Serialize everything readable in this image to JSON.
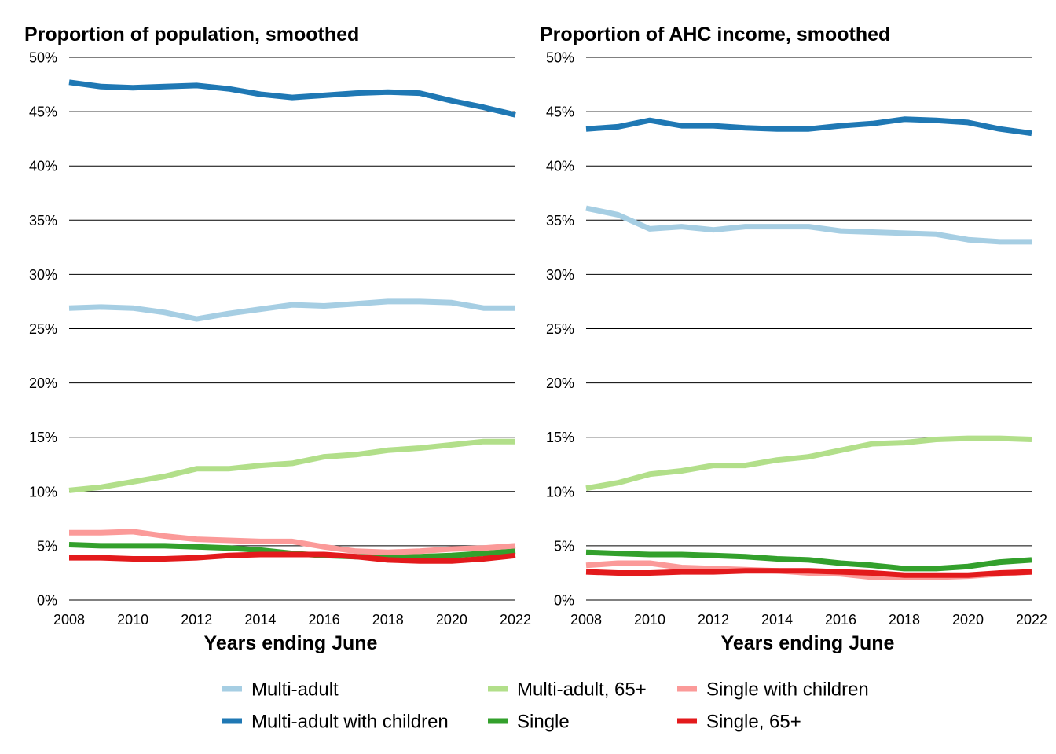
{
  "chart_data": [
    {
      "type": "line",
      "title": "Proportion of population, smoothed",
      "xlabel": "Years ending June",
      "ylabel": "",
      "ylim": [
        0,
        50
      ],
      "yticks": [
        0,
        5,
        10,
        15,
        20,
        25,
        30,
        35,
        40,
        45,
        50
      ],
      "ytick_labels": [
        "0%",
        "5%",
        "10%",
        "15%",
        "20%",
        "25%",
        "30%",
        "35%",
        "40%",
        "45%",
        "50%"
      ],
      "xlim": [
        2008,
        2022
      ],
      "xticks": [
        2008,
        2010,
        2012,
        2014,
        2016,
        2018,
        2020,
        2022
      ],
      "xtick_labels": [
        "2008",
        "2010",
        "2012",
        "2014",
        "2016",
        "2018",
        "2020",
        "2022"
      ],
      "grid": "horizontal",
      "x": [
        2008,
        2009,
        2010,
        2011,
        2012,
        2013,
        2014,
        2015,
        2016,
        2017,
        2018,
        2019,
        2020,
        2021,
        2022
      ],
      "series": [
        {
          "name": "Multi-adult",
          "color": "#a6cee3",
          "values": [
            26.9,
            27.0,
            26.9,
            26.5,
            25.9,
            26.4,
            26.8,
            27.2,
            27.1,
            27.3,
            27.5,
            27.5,
            27.4,
            26.9,
            26.9
          ]
        },
        {
          "name": "Multi-adult with children",
          "color": "#1f78b4",
          "values": [
            47.7,
            47.3,
            47.2,
            47.3,
            47.4,
            47.1,
            46.6,
            46.3,
            46.5,
            46.7,
            46.8,
            46.7,
            46.0,
            45.4,
            44.7
          ]
        },
        {
          "name": "Multi-adult, 65+",
          "color": "#b2df8a",
          "values": [
            10.1,
            10.4,
            10.9,
            11.4,
            12.1,
            12.1,
            12.4,
            12.6,
            13.2,
            13.4,
            13.8,
            14.0,
            14.3,
            14.6,
            14.6
          ]
        },
        {
          "name": "Single",
          "color": "#33a02c",
          "values": [
            5.1,
            5.0,
            5.0,
            5.0,
            4.9,
            4.8,
            4.6,
            4.3,
            4.1,
            4.0,
            4.0,
            4.0,
            4.1,
            4.3,
            4.5
          ]
        },
        {
          "name": "Single with children",
          "color": "#fb9a99",
          "values": [
            6.2,
            6.2,
            6.3,
            5.9,
            5.6,
            5.5,
            5.4,
            5.4,
            4.9,
            4.5,
            4.4,
            4.5,
            4.7,
            4.8,
            5.0
          ]
        },
        {
          "name": "Single, 65+",
          "color": "#e31a1c",
          "values": [
            3.9,
            3.9,
            3.8,
            3.8,
            3.9,
            4.1,
            4.2,
            4.2,
            4.2,
            4.0,
            3.7,
            3.6,
            3.6,
            3.8,
            4.1
          ]
        }
      ]
    },
    {
      "type": "line",
      "title": "Proportion of AHC income, smoothed",
      "xlabel": "Years ending June",
      "ylabel": "",
      "ylim": [
        0,
        50
      ],
      "yticks": [
        0,
        5,
        10,
        15,
        20,
        25,
        30,
        35,
        40,
        45,
        50
      ],
      "ytick_labels": [
        "0%",
        "5%",
        "10%",
        "15%",
        "20%",
        "25%",
        "30%",
        "35%",
        "40%",
        "45%",
        "50%"
      ],
      "xlim": [
        2008,
        2022
      ],
      "xticks": [
        2008,
        2010,
        2012,
        2014,
        2016,
        2018,
        2020,
        2022
      ],
      "xtick_labels": [
        "2008",
        "2010",
        "2012",
        "2014",
        "2016",
        "2018",
        "2020",
        "2022"
      ],
      "grid": "horizontal",
      "x": [
        2008,
        2009,
        2010,
        2011,
        2012,
        2013,
        2014,
        2015,
        2016,
        2017,
        2018,
        2019,
        2020,
        2021,
        2022
      ],
      "series": [
        {
          "name": "Multi-adult",
          "color": "#a6cee3",
          "values": [
            36.1,
            35.5,
            34.2,
            34.4,
            34.1,
            34.4,
            34.4,
            34.4,
            34.0,
            33.9,
            33.8,
            33.7,
            33.2,
            33.0,
            33.0
          ]
        },
        {
          "name": "Multi-adult with children",
          "color": "#1f78b4",
          "values": [
            43.4,
            43.6,
            44.2,
            43.7,
            43.7,
            43.5,
            43.4,
            43.4,
            43.7,
            43.9,
            44.3,
            44.2,
            44.0,
            43.4,
            43.0
          ]
        },
        {
          "name": "Multi-adult, 65+",
          "color": "#b2df8a",
          "values": [
            10.3,
            10.8,
            11.6,
            11.9,
            12.4,
            12.4,
            12.9,
            13.2,
            13.8,
            14.4,
            14.5,
            14.8,
            14.9,
            14.9,
            14.8
          ]
        },
        {
          "name": "Single",
          "color": "#33a02c",
          "values": [
            4.4,
            4.3,
            4.2,
            4.2,
            4.1,
            4.0,
            3.8,
            3.7,
            3.4,
            3.2,
            2.9,
            2.9,
            3.1,
            3.5,
            3.7
          ]
        },
        {
          "name": "Single with children",
          "color": "#fb9a99",
          "values": [
            3.2,
            3.4,
            3.4,
            3.0,
            2.9,
            2.8,
            2.7,
            2.5,
            2.4,
            2.1,
            2.1,
            2.1,
            2.2,
            2.4,
            2.6
          ]
        },
        {
          "name": "Single, 65+",
          "color": "#e31a1c",
          "values": [
            2.6,
            2.5,
            2.5,
            2.6,
            2.6,
            2.7,
            2.7,
            2.7,
            2.6,
            2.5,
            2.3,
            2.3,
            2.3,
            2.5,
            2.6
          ]
        }
      ]
    }
  ],
  "legend": {
    "placement": "bottom",
    "items": [
      {
        "label": "Multi-adult",
        "color": "#a6cee3"
      },
      {
        "label": "Multi-adult, 65+",
        "color": "#b2df8a"
      },
      {
        "label": "Single with children",
        "color": "#fb9a99"
      },
      {
        "label": "Multi-adult with children",
        "color": "#1f78b4"
      },
      {
        "label": "Single",
        "color": "#33a02c"
      },
      {
        "label": "Single, 65+",
        "color": "#e31a1c"
      }
    ]
  }
}
